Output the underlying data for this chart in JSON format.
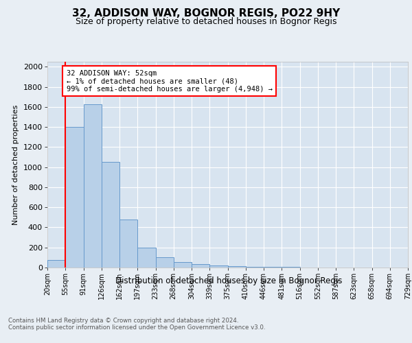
{
  "title_line1": "32, ADDISON WAY, BOGNOR REGIS, PO22 9HY",
  "title_line2": "Size of property relative to detached houses in Bognor Regis",
  "xlabel": "Distribution of detached houses by size in Bognor Regis",
  "ylabel": "Number of detached properties",
  "bin_labels": [
    "20sqm",
    "55sqm",
    "91sqm",
    "126sqm",
    "162sqm",
    "197sqm",
    "233sqm",
    "268sqm",
    "304sqm",
    "339sqm",
    "375sqm",
    "410sqm",
    "446sqm",
    "481sqm",
    "516sqm",
    "552sqm",
    "587sqm",
    "623sqm",
    "658sqm",
    "694sqm",
    "729sqm"
  ],
  "values": [
    75,
    1400,
    1625,
    1050,
    475,
    200,
    100,
    55,
    35,
    20,
    15,
    10,
    6,
    4,
    3,
    2,
    2,
    1,
    1,
    1
  ],
  "bar_color": "#b8d0e8",
  "bar_edge_color": "#6699cc",
  "vline_color": "red",
  "annotation_text": "32 ADDISON WAY: 52sqm\n← 1% of detached houses are smaller (48)\n99% of semi-detached houses are larger (4,948) →",
  "annotation_box_color": "white",
  "annotation_box_edge_color": "red",
  "ylim": [
    0,
    2050
  ],
  "yticks": [
    0,
    200,
    400,
    600,
    800,
    1000,
    1200,
    1400,
    1600,
    1800,
    2000
  ],
  "bg_color": "#e8eef4",
  "plot_bg_color": "#d8e4f0",
  "footer_line1": "Contains HM Land Registry data © Crown copyright and database right 2024.",
  "footer_line2": "Contains public sector information licensed under the Open Government Licence v3.0."
}
